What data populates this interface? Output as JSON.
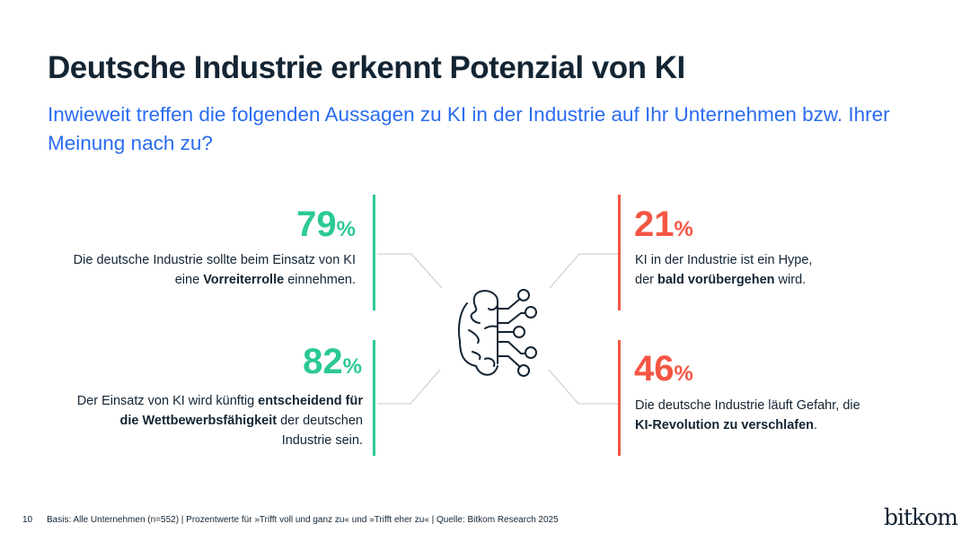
{
  "title": "Deutsche Industrie erkennt Potenzial von KI",
  "subtitle": "Inwieweit treffen die folgenden Aussagen zu KI in der Industrie auf Ihr Unternehmen bzw. Ihrer Meinung nach zu?",
  "percent_sign": "%",
  "stats": [
    {
      "value": "79",
      "text_pre": "Die deutsche Industrie sollte beim Einsatz von KI eine ",
      "text_bold": "Vorreiterrolle",
      "text_post": " einnehmen.",
      "color": "#2cc995"
    },
    {
      "value": "82",
      "text_pre": "Der Einsatz von KI wird künftig ",
      "text_bold": "entscheidend für die Wettbewerbsfähigkeit",
      "text_post": " der deutschen Industrie sein.",
      "color": "#2cc995"
    },
    {
      "value": "21",
      "text_pre": "KI in der Industrie ist ein Hype, der ",
      "text_bold": "bald vorübergehen",
      "text_post": " wird.",
      "color": "#f55543"
    },
    {
      "value": "46",
      "text_pre": "Die deutsche Industrie läuft Gefahr, die ",
      "text_bold": "KI-Revolution zu verschlafen",
      "text_post": ".",
      "color": "#f55543"
    }
  ],
  "center_icon": "brain-circuit-icon",
  "footer": {
    "page": "10",
    "source": "Basis: Alle Unternehmen (n=552) | Prozentwerte für »Trifft voll und ganz zu« und »Trifft eher zu« | Quelle: Bitkom Research 2025"
  },
  "logo": "bitkom"
}
